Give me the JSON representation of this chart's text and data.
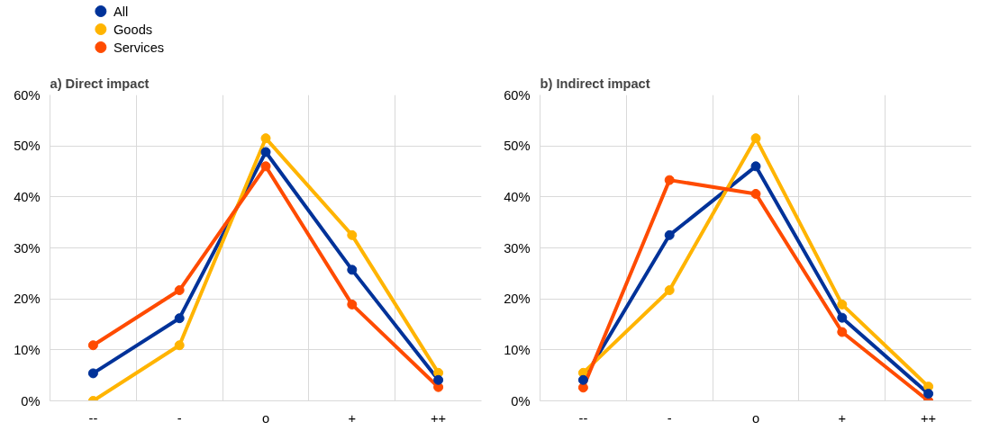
{
  "chart_data": [
    {
      "type": "line",
      "title": "a) Direct impact",
      "categories": [
        "--",
        "-",
        "o",
        "+",
        "++"
      ],
      "series": [
        {
          "name": "All",
          "color": "#003299",
          "values": [
            5.4,
            16.2,
            48.8,
            25.7,
            4.1
          ]
        },
        {
          "name": "Goods",
          "color": "#ffb400",
          "values": [
            0,
            10.9,
            51.5,
            32.5,
            5.5
          ]
        },
        {
          "name": "Services",
          "color": "#ff4b00",
          "values": [
            10.9,
            21.7,
            46.0,
            18.9,
            2.7
          ]
        }
      ],
      "ylim": [
        0,
        60
      ],
      "yticks": [
        {
          "value": 0,
          "label": "0%"
        },
        {
          "value": 10,
          "label": "10%"
        },
        {
          "value": 20,
          "label": "20%"
        },
        {
          "value": 30,
          "label": "30%"
        },
        {
          "value": 40,
          "label": "40%"
        },
        {
          "value": 50,
          "label": "50%"
        },
        {
          "value": 60,
          "label": "60%"
        }
      ],
      "grid": true,
      "legend": "top left",
      "marker": "circle",
      "line_style": "solid"
    },
    {
      "type": "line",
      "title": "b) Indirect impact",
      "categories": [
        "--",
        "-",
        "o",
        "+",
        "++"
      ],
      "series": [
        {
          "color": "#003299",
          "values": [
            4.1,
            32.5,
            46.0,
            16.3,
            1.4
          ]
        },
        {
          "color": "#ffb400",
          "values": [
            5.5,
            21.7,
            51.5,
            18.9,
            2.8
          ]
        },
        {
          "color": "#ff4b00",
          "values": [
            2.6,
            43.3,
            40.6,
            13.5,
            0
          ]
        }
      ],
      "ylim": [
        0,
        60
      ],
      "yticks": [
        {
          "value": 0,
          "label": "0%"
        },
        {
          "value": 10,
          "label": "10%"
        },
        {
          "value": 20,
          "label": "20%"
        },
        {
          "value": 30,
          "label": "30%"
        },
        {
          "value": 40,
          "label": "40%"
        },
        {
          "value": 50,
          "label": "50%"
        },
        {
          "value": 60,
          "label": "60%"
        }
      ],
      "grid": true,
      "marker": "circle",
      "line_style": "solid"
    }
  ]
}
